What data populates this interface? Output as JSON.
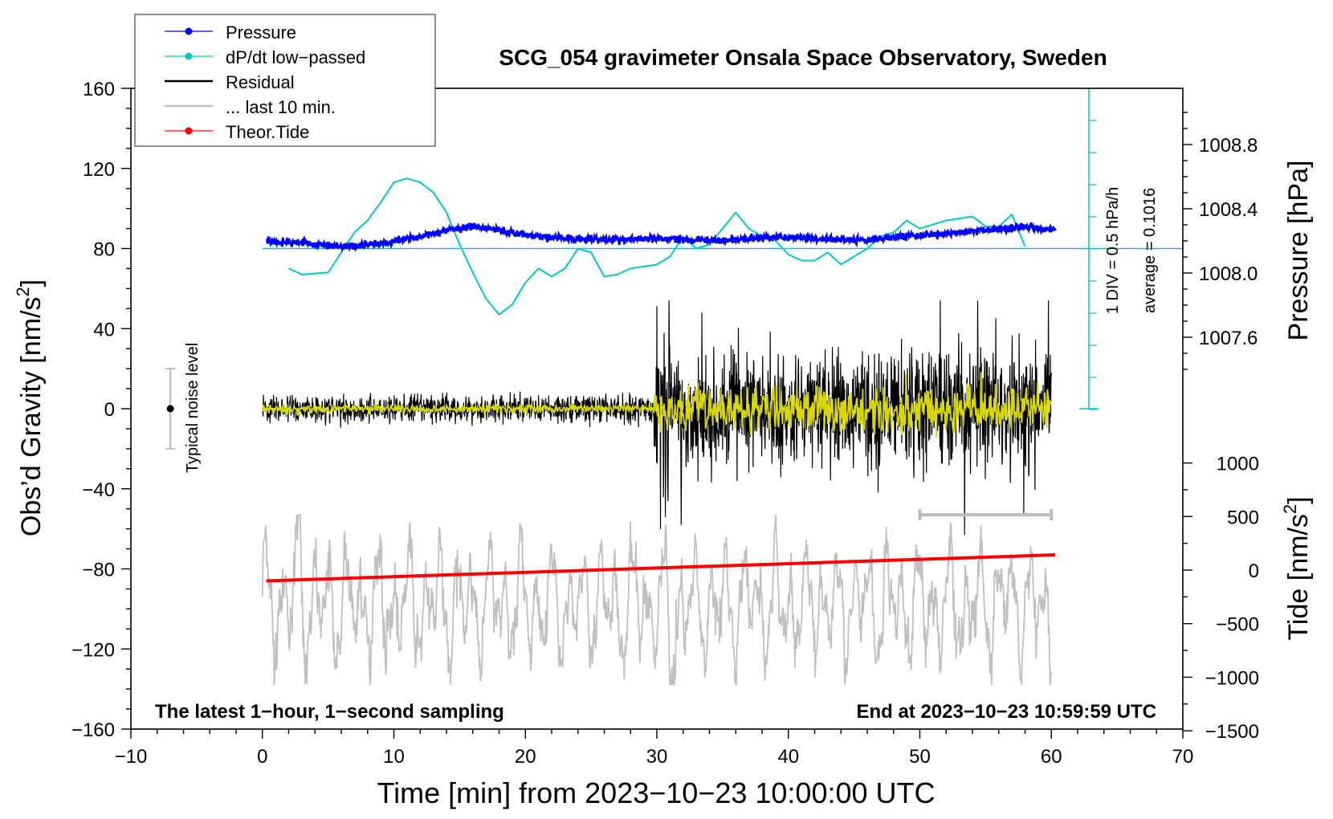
{
  "chart_data": {
    "type": "line",
    "title": "SCG_054 gravimeter Onsala Space Observatory, Sweden",
    "xlabel": "Time [min] from 2023−10−23 10:00:00 UTC",
    "ylabel_main": "Obs’d Gravity [nm/s",
    "ylabel_sup": "2",
    "ylabel_close": "]",
    "ylabel_pressure": "Pressure [hPa]",
    "ylabel_tide": "Tide [nm/s",
    "ylabel_tide_sup": "2",
    "ylabel_tide_close": "]",
    "xlim": [
      -10,
      70
    ],
    "ylim": [
      -160,
      160
    ],
    "x_ticks": [
      "−10",
      "0",
      "10",
      "20",
      "30",
      "40",
      "50",
      "60",
      "70"
    ],
    "x_tick_values": [
      -10,
      0,
      10,
      20,
      30,
      40,
      50,
      60,
      70
    ],
    "y_ticks": [
      "160",
      "120",
      "80",
      "40",
      "0",
      "−40",
      "−80",
      "−120",
      "−160"
    ],
    "y_tick_values": [
      160,
      120,
      80,
      40,
      0,
      -40,
      -80,
      -120,
      -160
    ],
    "pressure_ticks": [
      "1008.8",
      "1008.4",
      "1008.0",
      "1007.6"
    ],
    "pressure_tick_values": [
      1008.8,
      1008.4,
      1008.0,
      1007.6
    ],
    "tide_ticks": [
      "1000",
      "500",
      "0",
      "−500",
      "−1000",
      "−1500"
    ],
    "tide_tick_values": [
      1000,
      500,
      0,
      -500,
      -1000,
      -1500
    ],
    "legend": [
      {
        "label": "Pressure",
        "color": "#0000ff",
        "marker": true
      },
      {
        "label": "dP/dt low−passed",
        "color": "#00c8c8",
        "marker": true
      },
      {
        "label": "Residual",
        "color": "#000000",
        "marker": false
      },
      {
        "label": "... last 10 min.",
        "color": "#c0c0c0",
        "marker": false
      },
      {
        "label": "Theor.Tide",
        "color": "#ff0000",
        "marker": true
      }
    ],
    "annotations": {
      "left_bottom": "The latest 1−hour, 1−second sampling",
      "right_bottom": "End at 2023−10−23 10:59:59 UTC",
      "noise_label": "Typical noise level",
      "div_label": "1 DIV = 0.5 hPa/h",
      "average_label": "average = 0.1016"
    },
    "noise_bar": {
      "x": -7,
      "y": 0,
      "low": -20,
      "high": 20
    },
    "last10_bar": {
      "x_start": 50,
      "x_end": 60,
      "y": -53
    },
    "series": [
      {
        "name": "Pressure",
        "color": "#0000ff",
        "x": [
          0,
          3,
          6,
          9,
          12,
          14,
          16,
          18,
          20,
          22,
          24,
          26,
          28,
          30,
          32,
          34,
          36,
          38,
          40,
          42,
          44,
          46,
          48,
          50,
          52,
          54,
          56,
          58,
          60
        ],
        "y": [
          83.5,
          83,
          81,
          82.5,
          86,
          89,
          91,
          89,
          87,
          85.5,
          85,
          84.5,
          84.5,
          85,
          84.5,
          84,
          84.5,
          85.5,
          85.5,
          85,
          84.5,
          84.5,
          85.5,
          86.5,
          87.5,
          88.5,
          89.5,
          91,
          89.5
        ]
      },
      {
        "name": "dP/dt low-passed",
        "color": "#00c8c8",
        "x": [
          2,
          3,
          5,
          6,
          7,
          8,
          9,
          10,
          11,
          12,
          13,
          14,
          15,
          16,
          17,
          18,
          19,
          20,
          21,
          22,
          23,
          24,
          25,
          26,
          27,
          28,
          30,
          31,
          32,
          33,
          34,
          35,
          36,
          37,
          38,
          39,
          40,
          41,
          42,
          43,
          44,
          45,
          46,
          47,
          48,
          49,
          50,
          52,
          54,
          55,
          56,
          57,
          58
        ],
        "y": [
          70,
          67,
          68,
          78,
          88,
          94,
          103,
          113,
          115,
          113,
          108,
          98,
          82,
          68,
          55,
          47,
          52,
          63,
          70,
          66,
          70,
          80,
          78,
          66,
          67,
          70,
          72,
          76,
          86,
          80,
          82,
          90,
          98,
          90,
          86,
          84,
          77,
          74,
          74,
          78,
          72,
          76,
          80,
          86,
          88,
          94,
          90,
          94,
          96,
          91,
          91,
          97,
          81
        ]
      },
      {
        "name": "Theor.Tide",
        "color": "#ff0000",
        "x": [
          0.3,
          60.3
        ],
        "y": [
          -86,
          -73
        ]
      }
    ],
    "pressure_reference_y": 80
  }
}
